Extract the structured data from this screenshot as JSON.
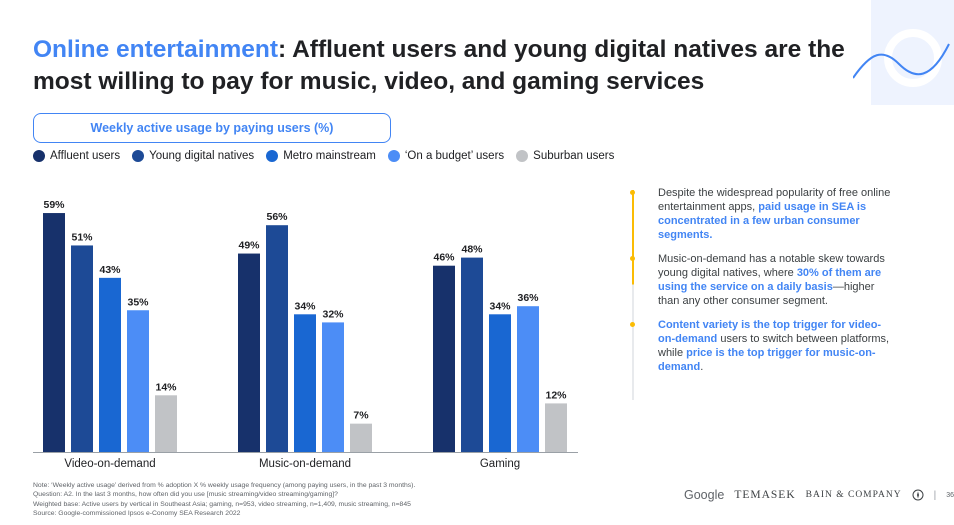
{
  "title": {
    "highlight": "Online entertainment",
    "rest": ": Affluent users and young digital natives are the most willing to pay for music, video, and gaming services"
  },
  "chart_data": {
    "type": "bar",
    "title": "Weekly active usage by paying users (%)",
    "categories": [
      "Video-on-demand",
      "Music-on-demand",
      "Gaming"
    ],
    "series": [
      {
        "name": "Affluent users",
        "color": "#17316b",
        "values": [
          59,
          49,
          46
        ]
      },
      {
        "name": "Young digital natives",
        "color": "#1d4a96",
        "values": [
          51,
          56,
          48
        ]
      },
      {
        "name": "Metro mainstream",
        "color": "#1967d2",
        "values": [
          43,
          34,
          34
        ]
      },
      {
        "name": "‘On a budget’ users",
        "color": "#4c8df6",
        "values": [
          35,
          32,
          36
        ]
      },
      {
        "name": "Suburban users",
        "color": "#c1c3c6",
        "values": [
          14,
          7,
          12
        ]
      }
    ],
    "value_labels": [
      [
        "59%",
        "49%",
        "46%"
      ],
      [
        "51%",
        "56%",
        "48%"
      ],
      [
        "43%",
        "34%",
        "34%"
      ],
      [
        "35%",
        "32%",
        "36%"
      ],
      [
        "14%",
        "7%",
        "12%"
      ]
    ],
    "ylim": [
      0,
      60
    ],
    "grid": false,
    "legend_position": "top-left"
  },
  "bullets": [
    {
      "plain1": "Despite the widespread popularity of free online entertainment apps, ",
      "bold": "paid usage in SEA is concentrated in a few urban consumer segments.",
      "plain2": ""
    },
    {
      "plain1": "Music-on-demand has a notable skew towards young digital natives, where ",
      "bold": "30% of them are using the service on a daily basis",
      "plain2": "—higher than any other consumer segment."
    },
    {
      "plain1": "",
      "bold": "Content variety is the top trigger for video-on-demand",
      "plain2": " users to switch between platforms, while ",
      "bold2": "price is the top trigger for music-on-demand",
      "plain3": "."
    }
  ],
  "notes": [
    "Note: ‘Weekly active usage’ derived from % adoption X % weekly usage frequency (among paying users, in the past 3 months).",
    "Question: A2. In the last 3 months, how often did you use [music streaming/video streaming/gaming]?",
    "Weighted base: Active users by vertical in Southeast Asia; gaming, n=953, video streaming, n=1,409, music streaming, n=845",
    "Source: Google-commissioned Ipsos e-Conomy SEA Research 2022"
  ],
  "footer": {
    "google": "Google",
    "temasek": "TEMASEK",
    "bain": "BAIN & COMPANY",
    "bain_icon": "compass-icon",
    "separator": "|",
    "page": "36"
  },
  "colors": {
    "accent_blue": "#4285f4",
    "bullet_yellow": "#fbbc04"
  }
}
